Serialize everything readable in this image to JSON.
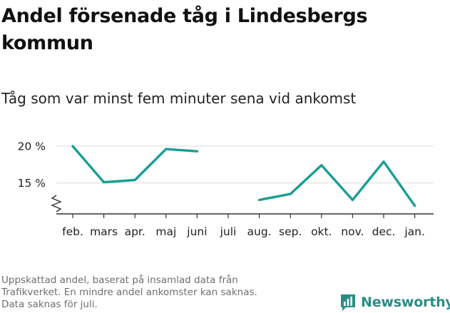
{
  "title": "Andel försenade tåg i Lindesbergs kommun",
  "subtitle": "Tåg som var minst fem minuter sena vid ankomst",
  "footnote": [
    "Uppskattad andel, baserat på insamlad data från",
    "Trafikverket. En mindre andel ankomster kan saknas.",
    "Data saknas för juli."
  ],
  "brand": "Newsworthy",
  "colors": {
    "line": "#1a9e94",
    "grid": "#e3e3e3",
    "axis": "#333333",
    "brand": "#2a8d85"
  },
  "chart_data": {
    "type": "line",
    "title": "Andel försenade tåg i Lindesbergs kommun",
    "subtitle": "Tåg som var minst fem minuter sena vid ankomst",
    "categories": [
      "feb.",
      "mars",
      "apr.",
      "maj",
      "juni",
      "juli",
      "aug.",
      "sep.",
      "okt.",
      "nov.",
      "dec.",
      "jan."
    ],
    "series": [
      {
        "values": [
          20.0,
          15.1,
          15.4,
          19.6,
          19.3,
          null,
          12.7,
          13.5,
          17.4,
          12.7,
          17.9,
          11.9
        ]
      }
    ],
    "yticks": [
      {
        "value": 15,
        "label": "15 %"
      },
      {
        "value": 20,
        "label": "20 %"
      }
    ],
    "ylim": [
      10.8,
      20.0
    ],
    "axis_break": true,
    "grid": true
  }
}
